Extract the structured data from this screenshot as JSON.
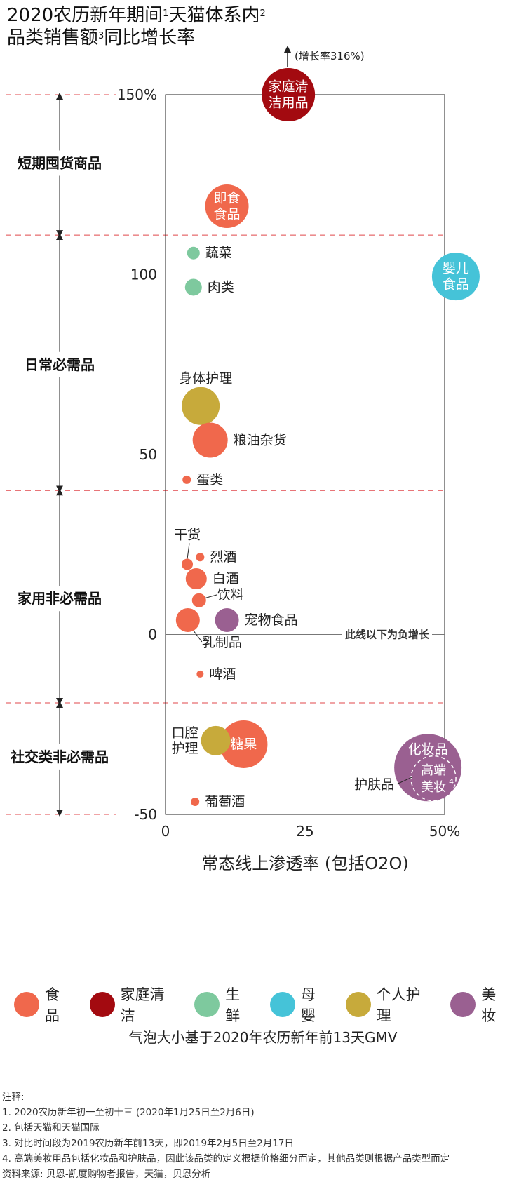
{
  "title": {
    "line1_parts": [
      "2020农历新年期间",
      "1",
      "天猫体系内",
      "2"
    ],
    "line2_parts": [
      "品类销售额",
      "3",
      "同比增长率"
    ]
  },
  "chart_data": {
    "type": "bubble",
    "xlabel": "常态线上渗透率 (包括O2O)",
    "xlim": [
      0,
      50
    ],
    "ylim": [
      -50,
      150
    ],
    "x_ticks": [
      {
        "value": 0,
        "label": "0"
      },
      {
        "value": 25,
        "label": "25"
      },
      {
        "value": 50,
        "label": "50%"
      }
    ],
    "y_ticks": [
      {
        "value": 150,
        "label": "150%"
      },
      {
        "value": 100,
        "label": "100"
      },
      {
        "value": 50,
        "label": "50"
      },
      {
        "value": 0,
        "label": "0"
      },
      {
        "value": -50,
        "label": "-50"
      }
    ],
    "zero_line_label": "此线以下为负增长",
    "overflow_note": "(增长率316%)",
    "segment_boundaries": [
      150,
      111,
      40,
      -19,
      -50
    ],
    "segments": [
      {
        "label": "短期囤货商品",
        "y": 131
      },
      {
        "label": "日常必需品",
        "y": 75
      },
      {
        "label": "家用非必需品",
        "y": 10
      },
      {
        "label": "社交类非必需品",
        "y": -34
      }
    ],
    "categories": [
      {
        "key": "food",
        "name": "食品",
        "color": "#f0684c"
      },
      {
        "key": "clean",
        "name": "家庭清洁",
        "color": "#a30a10"
      },
      {
        "key": "fresh",
        "name": "生鲜",
        "color": "#7ec99e"
      },
      {
        "key": "baby",
        "name": "母婴",
        "color": "#45c3d8"
      },
      {
        "key": "care",
        "name": "个人护理",
        "color": "#c7aa3b"
      },
      {
        "key": "beauty",
        "name": "美妆",
        "color": "#9a6091"
      }
    ],
    "points": [
      {
        "label": "家庭清洁用品",
        "lines": [
          "家庭清",
          "洁用品"
        ],
        "category": "clean",
        "x": 22,
        "y": 150,
        "r": 38,
        "label_pos": "inside",
        "overflow": true
      },
      {
        "label": "即食食品",
        "lines": [
          "即食",
          "食品"
        ],
        "category": "food",
        "x": 11,
        "y": 119,
        "r": 31,
        "label_pos": "inside"
      },
      {
        "label": "蔬菜",
        "lines": [
          "蔬菜"
        ],
        "category": "fresh",
        "x": 5,
        "y": 106,
        "r": 9,
        "label_pos": "right"
      },
      {
        "label": "肉类",
        "lines": [
          "肉类"
        ],
        "category": "fresh",
        "x": 5,
        "y": 96.5,
        "r": 12,
        "label_pos": "right"
      },
      {
        "label": "婴儿食品",
        "lines": [
          "婴儿",
          "食品"
        ],
        "category": "baby",
        "x": 52,
        "y": 99.5,
        "r": 34,
        "label_pos": "inside"
      },
      {
        "label": "身体护理",
        "lines": [
          "身体护理"
        ],
        "category": "care",
        "x": 6.3,
        "y": 63.5,
        "r": 27,
        "label_pos": "above"
      },
      {
        "label": "粮油杂货",
        "lines": [
          "粮油杂货"
        ],
        "category": "food",
        "x": 8,
        "y": 54,
        "r": 25,
        "label_pos": "right"
      },
      {
        "label": "蛋类",
        "lines": [
          "蛋类"
        ],
        "category": "food",
        "x": 3.8,
        "y": 43,
        "r": 6,
        "label_pos": "right"
      },
      {
        "label": "干货",
        "lines": [
          "干货"
        ],
        "category": "food",
        "x": 3.9,
        "y": 19.5,
        "r": 8,
        "label_pos": "above-leader"
      },
      {
        "label": "烈酒",
        "lines": [
          "烈酒"
        ],
        "category": "food",
        "x": 6.2,
        "y": 21.5,
        "r": 6,
        "label_pos": "right"
      },
      {
        "label": "白酒",
        "lines": [
          "白酒"
        ],
        "category": "food",
        "x": 5.5,
        "y": 15.5,
        "r": 15,
        "label_pos": "right"
      },
      {
        "label": "饮料",
        "lines": [
          "饮料"
        ],
        "category": "food",
        "x": 6,
        "y": 9.5,
        "r": 10,
        "label_pos": "right-leader"
      },
      {
        "label": "乳制品",
        "lines": [
          "乳制品"
        ],
        "category": "food",
        "x": 4,
        "y": 4,
        "r": 17,
        "label_pos": "below-leader"
      },
      {
        "label": "宠物食品",
        "lines": [
          "宠物食品"
        ],
        "category": "beauty",
        "x": 11,
        "y": 4,
        "r": 17,
        "label_pos": "right"
      },
      {
        "label": "啤酒",
        "lines": [
          "啤酒"
        ],
        "category": "food",
        "x": 6.2,
        "y": -11,
        "r": 5,
        "label_pos": "right"
      },
      {
        "label": "糖果",
        "lines": [
          "糖果"
        ],
        "category": "food",
        "x": 14,
        "y": -30.5,
        "r": 34,
        "label_pos": "inside"
      },
      {
        "label": "口腔护理",
        "lines": [
          "口腔",
          "护理"
        ],
        "category": "care",
        "x": 9,
        "y": -29.5,
        "r": 21,
        "label_pos": "left"
      },
      {
        "label": "葡萄酒",
        "lines": [
          "葡萄酒"
        ],
        "category": "food",
        "x": 5.3,
        "y": -46.5,
        "r": 6,
        "label_pos": "right"
      },
      {
        "label": "化妆品",
        "lines": [
          "化妆品"
        ],
        "category": "beauty",
        "x": 47,
        "y": -37,
        "r": 48,
        "label_pos": "custom"
      },
      {
        "label": "高端美妆",
        "lines": [
          "高端",
          "美妆",
          "4"
        ],
        "category": "beauty",
        "x": 48,
        "y": -40,
        "r": 32,
        "label_pos": "custom"
      }
    ],
    "skin_label": "护肤品"
  },
  "bubble_note": "气泡大小基于2020年农历新年前13天GMV",
  "notes": [
    "注释:",
    "1. 2020农历新年初一至初十三 (2020年1月25日至2月6日)",
    "2. 包括天猫和天猫国际",
    "3. 对比时间段为2019农历新年前13天，即2019年2月5日至2月17日",
    "4. 高端美妆用品包括化妆品和护肤品，因此该品类的定义根据价格细分而定，其他品类则根据产品类型而定",
    "资料来源: 贝恩-凯度购物者报告，天猫，贝恩分析"
  ]
}
